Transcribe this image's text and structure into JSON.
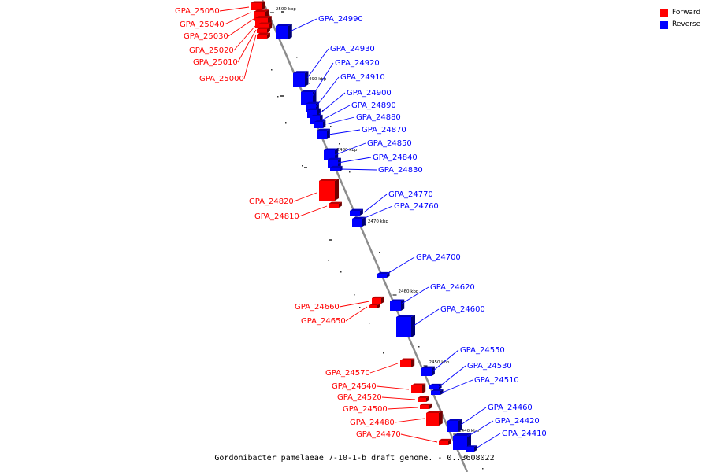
{
  "colors": {
    "forward": "#ff0000",
    "reverse": "#0000ff",
    "axis": "#8c8c8c"
  },
  "legend": [
    {
      "label": "Forward",
      "color": "#ff0000"
    },
    {
      "label": "Reverse",
      "color": "#0000ff"
    }
  ],
  "caption": "Gordonibacter pamelaeae 7-10-1-b draft genome. - 0..3608022",
  "ticks": [
    "2500 kbp",
    "2490 kbp",
    "2480 kbp",
    "2470 kbp",
    "2460 kbp",
    "2450 kbp",
    "2440 kbp"
  ],
  "genes": [
    {
      "name": "GPA_25050",
      "strand": "forward"
    },
    {
      "name": "GPA_25040",
      "strand": "forward"
    },
    {
      "name": "GPA_25030",
      "strand": "forward"
    },
    {
      "name": "GPA_25020",
      "strand": "forward"
    },
    {
      "name": "GPA_25010",
      "strand": "forward"
    },
    {
      "name": "GPA_25000",
      "strand": "forward"
    },
    {
      "name": "GPA_24990",
      "strand": "reverse"
    },
    {
      "name": "GPA_24930",
      "strand": "reverse"
    },
    {
      "name": "GPA_24920",
      "strand": "reverse"
    },
    {
      "name": "GPA_24910",
      "strand": "reverse"
    },
    {
      "name": "GPA_24900",
      "strand": "reverse"
    },
    {
      "name": "GPA_24890",
      "strand": "reverse"
    },
    {
      "name": "GPA_24880",
      "strand": "reverse"
    },
    {
      "name": "GPA_24870",
      "strand": "reverse"
    },
    {
      "name": "GPA_24850",
      "strand": "reverse"
    },
    {
      "name": "GPA_24840",
      "strand": "reverse"
    },
    {
      "name": "GPA_24830",
      "strand": "reverse"
    },
    {
      "name": "GPA_24820",
      "strand": "forward"
    },
    {
      "name": "GPA_24810",
      "strand": "forward"
    },
    {
      "name": "GPA_24770",
      "strand": "reverse"
    },
    {
      "name": "GPA_24760",
      "strand": "reverse"
    },
    {
      "name": "GPA_24700",
      "strand": "reverse"
    },
    {
      "name": "GPA_24660",
      "strand": "forward"
    },
    {
      "name": "GPA_24650",
      "strand": "forward"
    },
    {
      "name": "GPA_24620",
      "strand": "reverse"
    },
    {
      "name": "GPA_24600",
      "strand": "reverse"
    },
    {
      "name": "GPA_24570",
      "strand": "forward"
    },
    {
      "name": "GPA_24550",
      "strand": "reverse"
    },
    {
      "name": "GPA_24540",
      "strand": "forward"
    },
    {
      "name": "GPA_24530",
      "strand": "reverse"
    },
    {
      "name": "GPA_24520",
      "strand": "forward"
    },
    {
      "name": "GPA_24510",
      "strand": "reverse"
    },
    {
      "name": "GPA_24500",
      "strand": "forward"
    },
    {
      "name": "GPA_24480",
      "strand": "forward"
    },
    {
      "name": "GPA_24470",
      "strand": "forward"
    },
    {
      "name": "GPA_24460",
      "strand": "reverse"
    },
    {
      "name": "GPA_24420",
      "strand": "reverse"
    },
    {
      "name": "GPA_24410",
      "strand": "reverse"
    }
  ]
}
